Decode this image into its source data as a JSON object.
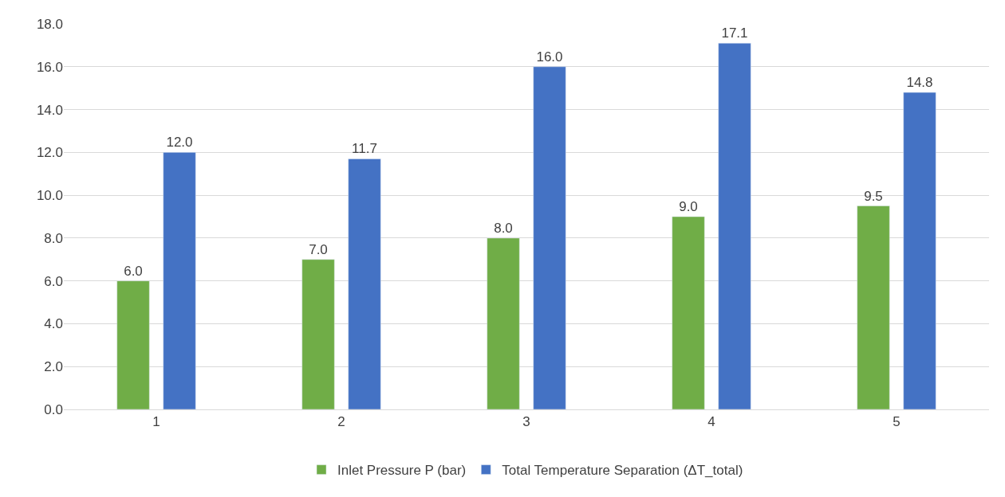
{
  "chart_data": {
    "type": "bar",
    "categories": [
      "1",
      "2",
      "3",
      "4",
      "5"
    ],
    "series": [
      {
        "name": "Inlet Pressure P (bar)",
        "color": "#70ad47",
        "values": [
          6.0,
          7.0,
          8.0,
          9.0,
          9.5
        ],
        "value_labels": [
          "6.0",
          "7.0",
          "8.0",
          "9.0",
          "9.5"
        ]
      },
      {
        "name": "Total Temperature Separation (ΔT_total)",
        "color": "#4472c4",
        "values": [
          12.0,
          11.7,
          16.0,
          17.1,
          14.8
        ],
        "value_labels": [
          "12.0",
          "11.7",
          "16.0",
          "17.1",
          "14.8"
        ]
      }
    ],
    "ylim": [
      0,
      18
    ],
    "yticks": [
      {
        "value": 0,
        "label": "0.0"
      },
      {
        "value": 2,
        "label": "2.0"
      },
      {
        "value": 4,
        "label": "4.0"
      },
      {
        "value": 6,
        "label": "6.0"
      },
      {
        "value": 8,
        "label": "8.0"
      },
      {
        "value": 10,
        "label": "10.0"
      },
      {
        "value": 12,
        "label": "12.0"
      },
      {
        "value": 14,
        "label": "14.0"
      },
      {
        "value": 16,
        "label": "16.0"
      },
      {
        "value": 18,
        "label": "18.0"
      }
    ],
    "grid": "y",
    "legend": "bottom"
  }
}
